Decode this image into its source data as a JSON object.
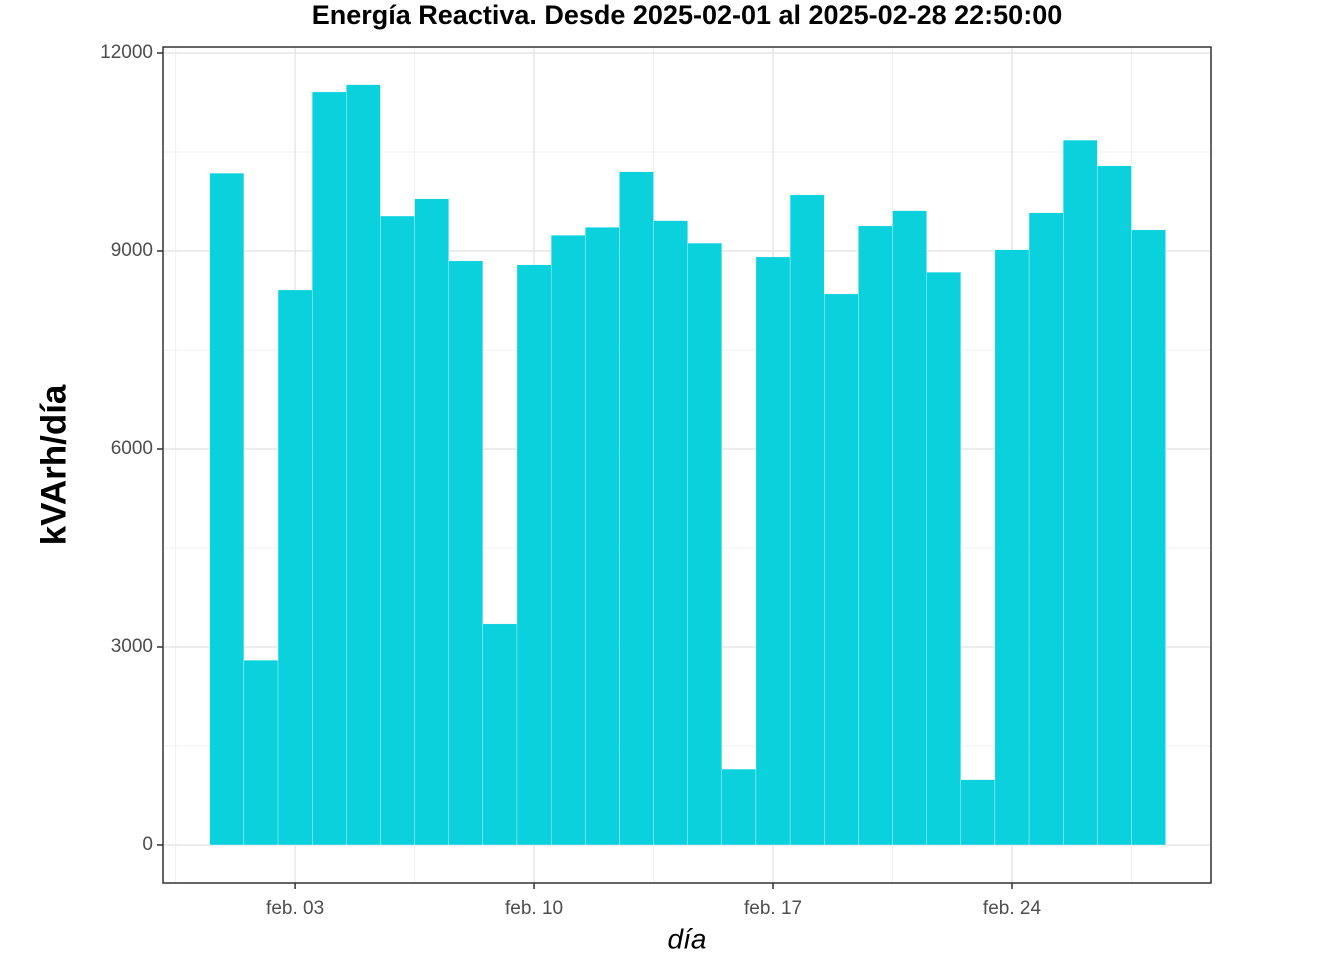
{
  "chart_data": {
    "type": "bar",
    "title": "Energía Reactiva. Desde  2025-02-01  al  2025-02-28 22:50:00",
    "x_label": "día",
    "y_label": "kVArh/día",
    "x": [
      1,
      2,
      3,
      4,
      5,
      6,
      7,
      8,
      9,
      10,
      11,
      12,
      13,
      14,
      15,
      16,
      17,
      18,
      19,
      20,
      21,
      22,
      23,
      24,
      25,
      26,
      27,
      28
    ],
    "values": [
      10180,
      2800,
      8410,
      11410,
      11520,
      9530,
      9790,
      8850,
      3350,
      8790,
      9240,
      9360,
      10200,
      9460,
      9120,
      1150,
      8910,
      9850,
      8350,
      9380,
      9610,
      8680,
      990,
      9020,
      9580,
      10680,
      10290,
      9320
    ],
    "color": "#0bd1dc",
    "xlim": [
      -0.87,
      29.83
    ],
    "xticks": [
      {
        "value": 3,
        "label": "feb. 03"
      },
      {
        "value": 10,
        "label": "feb. 10"
      },
      {
        "value": 17,
        "label": "feb. 17"
      },
      {
        "value": 24,
        "label": "feb. 24"
      }
    ],
    "x_minor_grid": [
      -0.5,
      6.5,
      13.5,
      20.5,
      27.5
    ],
    "ylim": [
      -576,
      12091
    ],
    "yticks": [
      0,
      3000,
      6000,
      9000,
      12000
    ],
    "y_minor_grid": [
      1500,
      4500,
      7500,
      10500
    ],
    "grid": true
  }
}
